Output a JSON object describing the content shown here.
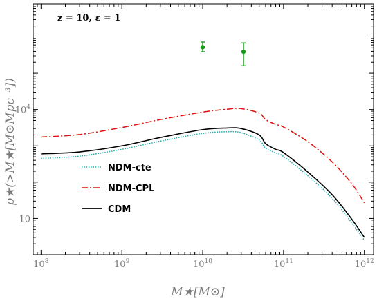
{
  "chart_data": {
    "type": "line",
    "annotation": "z = 10, ε = 1",
    "xlabel": "M★[M⊙]",
    "ylabel": "ρ★(>M★[M⊙Mpc⁻³])",
    "x_scale": "log",
    "y_scale": "log",
    "xlim": [
      80000000.0,
      1300000000000.0
    ],
    "ylim": [
      1.0,
      8000000.0
    ],
    "x_ticks": [
      {
        "value": 100000000.0,
        "base": "10",
        "exp": "8"
      },
      {
        "value": 1000000000.0,
        "base": "10",
        "exp": "9"
      },
      {
        "value": 10000000000.0,
        "base": "10",
        "exp": "10"
      },
      {
        "value": 100000000000.0,
        "base": "10",
        "exp": "11"
      },
      {
        "value": 1000000000000.0,
        "base": "10",
        "exp": "12"
      }
    ],
    "y_ticks": [
      {
        "value": 10,
        "base": "10",
        "exp": ""
      },
      {
        "value": 10000,
        "base": "10",
        "exp": "4"
      }
    ],
    "legend_position": "lower-left",
    "series": [
      {
        "name": "NDM-cte",
        "color": "#1aacac",
        "style": "dotted",
        "points": [
          [
            100000000.0,
            450
          ],
          [
            300000000.0,
            520
          ],
          [
            1000000000.0,
            800
          ],
          [
            3000000000.0,
            1350
          ],
          [
            10000000000.0,
            2200
          ],
          [
            20000000000.0,
            2450
          ],
          [
            30000000000.0,
            2300
          ],
          [
            50000000000.0,
            1450
          ],
          [
            60000000000.0,
            860
          ],
          [
            80000000000.0,
            640
          ],
          [
            100000000000.0,
            510
          ],
          [
            200000000000.0,
            150
          ],
          [
            400000000000.0,
            36
          ],
          [
            700000000000.0,
            7.5
          ],
          [
            1000000000000.0,
            2.5
          ]
        ]
      },
      {
        "name": "NDM-CPL",
        "color": "#e01010",
        "style": "dashdot",
        "points": [
          [
            100000000.0,
            1750
          ],
          [
            300000000.0,
            2050
          ],
          [
            1000000000.0,
            3200
          ],
          [
            3000000000.0,
            5300
          ],
          [
            10000000000.0,
            8500
          ],
          [
            20000000000.0,
            10200
          ],
          [
            30000000000.0,
            10600
          ],
          [
            50000000000.0,
            8000
          ],
          [
            60000000000.0,
            5300
          ],
          [
            80000000000.0,
            3900
          ],
          [
            100000000000.0,
            3300
          ],
          [
            200000000000.0,
            1300
          ],
          [
            400000000000.0,
            360
          ],
          [
            700000000000.0,
            90
          ],
          [
            1000000000000.0,
            27
          ]
        ]
      },
      {
        "name": "CDM",
        "color": "#000000",
        "style": "solid",
        "points": [
          [
            100000000.0,
            600
          ],
          [
            300000000.0,
            680
          ],
          [
            1000000000.0,
            1000
          ],
          [
            3000000000.0,
            1700
          ],
          [
            10000000000.0,
            2800
          ],
          [
            20000000000.0,
            3100
          ],
          [
            30000000000.0,
            3000
          ],
          [
            50000000000.0,
            2000
          ],
          [
            60000000000.0,
            1150
          ],
          [
            80000000000.0,
            800
          ],
          [
            100000000000.0,
            650
          ],
          [
            200000000000.0,
            190
          ],
          [
            400000000000.0,
            45
          ],
          [
            700000000000.0,
            9.5
          ],
          [
            1000000000000.0,
            3.0
          ]
        ]
      }
    ],
    "observations": {
      "color": "#1a9a1a",
      "points": [
        {
          "x": 10000000000.0,
          "y": 520000,
          "ylow": 390000,
          "yhigh": 720000
        },
        {
          "x": 32000000000.0,
          "y": 390000,
          "ylow": 160000,
          "yhigh": 680000
        }
      ]
    }
  }
}
